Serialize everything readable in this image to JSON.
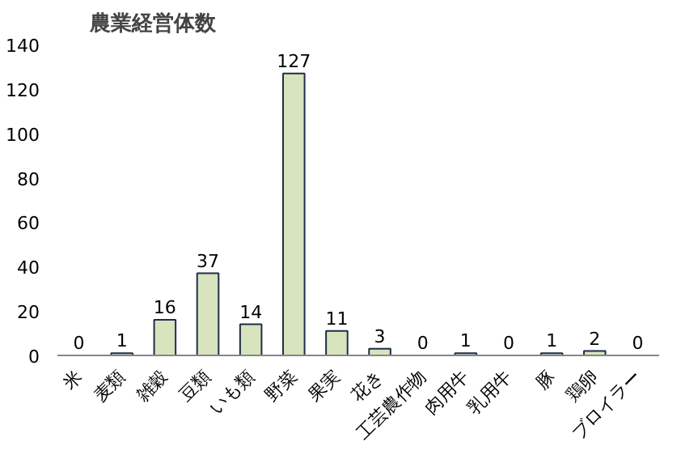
{
  "chart_data": {
    "type": "bar",
    "title": "農業経営体数",
    "categories": [
      "米",
      "麦類",
      "雑穀",
      "豆類",
      "いも類",
      "野菜",
      "果実",
      "花き",
      "工芸農作物",
      "肉用牛",
      "乳用牛",
      "豚",
      "鶏卵",
      "ブロイラー"
    ],
    "values": [
      0,
      1,
      16,
      37,
      14,
      127,
      11,
      3,
      0,
      1,
      0,
      1,
      2,
      0
    ],
    "color": "#d7e4bd",
    "ylim": [
      0,
      140
    ],
    "yticks": [
      0,
      20,
      40,
      60,
      80,
      100,
      120,
      140
    ],
    "data_labels": true,
    "grid": false
  }
}
